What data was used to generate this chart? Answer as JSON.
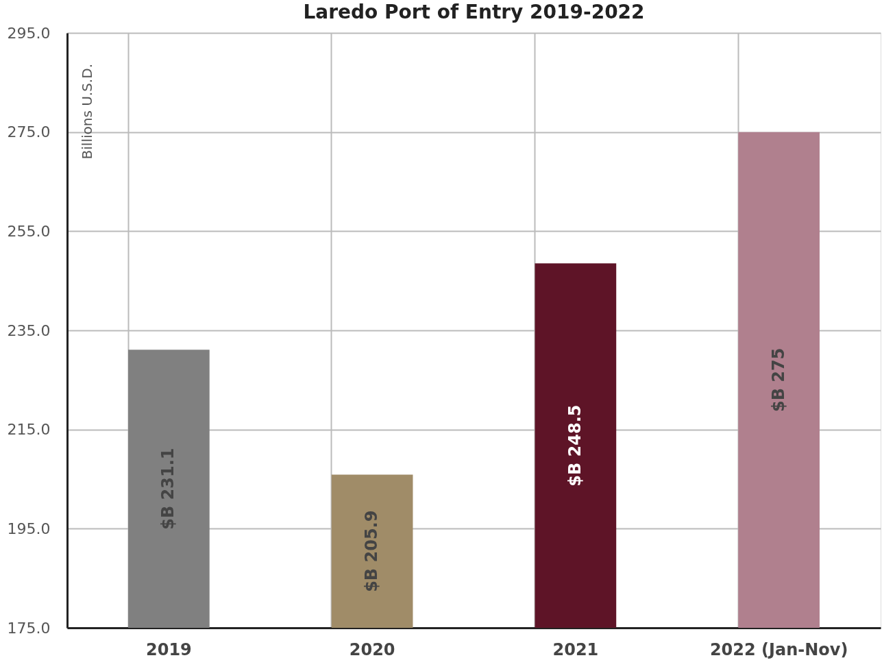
{
  "chart_data": {
    "type": "bar",
    "title": "Laredo Port of Entry 2019-2022",
    "ylabel": "Billions U.S.D.",
    "categories": [
      "2019",
      "2020",
      "2021",
      "2022 (Jan-Nov)"
    ],
    "values": [
      231.1,
      205.9,
      248.5,
      275
    ],
    "colors": [
      "#808080",
      "#a08c68",
      "#5e1427",
      "#b0808e"
    ],
    "value_labels": [
      "$B 231.1",
      "$B 205.9",
      "$B 248.5",
      "$B 275"
    ],
    "ylim": [
      175,
      295
    ],
    "yticks": [
      {
        "value": 175,
        "label": "175.0"
      },
      {
        "value": 195,
        "label": "195.0"
      },
      {
        "value": 215,
        "label": "215.0"
      },
      {
        "value": 235,
        "label": "235.0"
      },
      {
        "value": 255,
        "label": "255.0"
      },
      {
        "value": 275,
        "label": "275.0"
      },
      {
        "value": 295,
        "label": "295.0"
      }
    ],
    "grid": true
  }
}
